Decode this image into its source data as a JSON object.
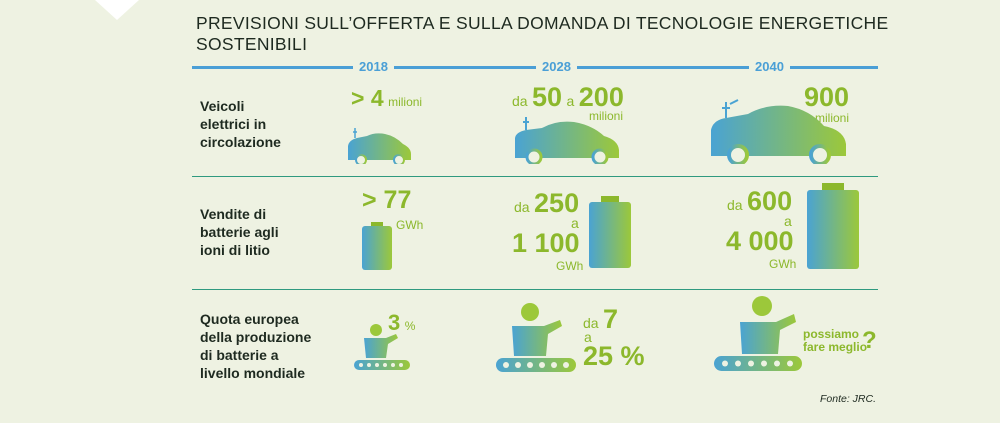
{
  "title": "PREVISIONI SULL’OFFERTA E SULLA DOMANDA DI TECNOLOGIE ENERGETICHE SOSTENIBILI",
  "years": [
    "2018",
    "2028",
    "2040"
  ],
  "rows": {
    "vehicles": {
      "label": [
        "Veicoli",
        "elettrici in",
        "circolazione"
      ],
      "y2018": {
        "prefix": "> 4",
        "unit": "milioni"
      },
      "y2028": {
        "da": "da",
        "from": "50",
        "a": "a",
        "to": "200",
        "unit": "milioni"
      },
      "y2040": {
        "value": "900",
        "unit": "milioni"
      }
    },
    "batteries": {
      "label": [
        "Vendite di",
        "batterie agli",
        "ioni di litio"
      ],
      "y2018": {
        "prefix": "> 77",
        "unit": "GWh"
      },
      "y2028": {
        "da": "da",
        "from": "250",
        "a": "a",
        "to": "1 100",
        "unit": "GWh"
      },
      "y2040": {
        "da": "da",
        "from": "600",
        "a": "a",
        "to": "4 000",
        "unit": "GWh"
      }
    },
    "share": {
      "label": [
        "Quota europea",
        "della produzione",
        "di batterie a",
        "livello mondiale"
      ],
      "y2018": {
        "value": "3",
        "unit": "%"
      },
      "y2028": {
        "da": "da",
        "from": "7",
        "a": "a",
        "to": "25 %"
      },
      "y2040": {
        "text1": "possiamo",
        "text2": "fare meglio",
        "q": "?"
      }
    }
  },
  "source": "Fonte: JRC.",
  "colors": {
    "green": "#8cb82c",
    "blue": "#4a9fd6",
    "teal": "#2f9a7f",
    "background": "#eef2e2"
  }
}
